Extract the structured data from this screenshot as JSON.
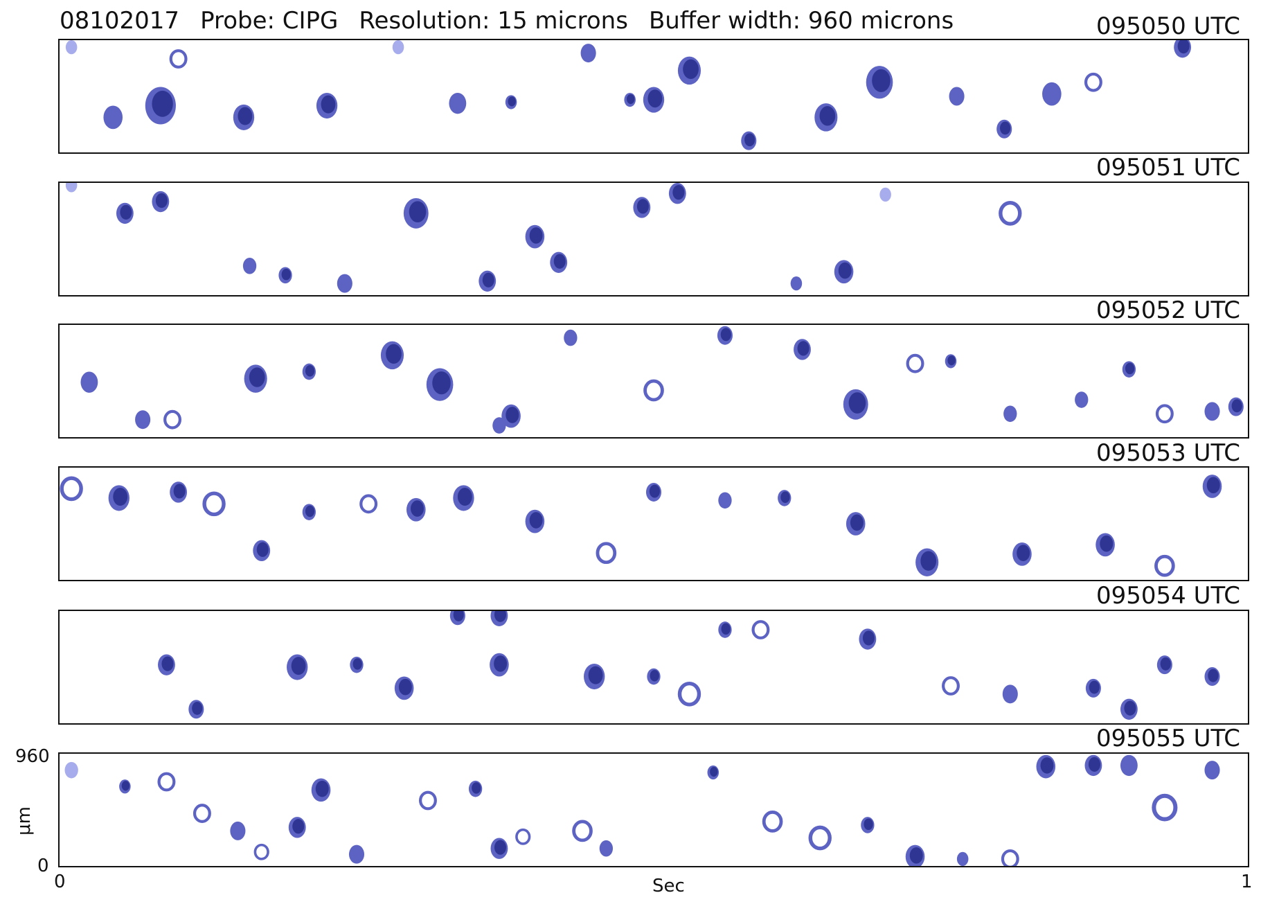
{
  "header": {
    "date": "08102017",
    "probe": "Probe: CIPG",
    "resolution": "Resolution: 15 microns",
    "buffer": "Buffer width: 960 microns"
  },
  "colors": {
    "dark": "#2f3593",
    "mid": "#5d63c2",
    "light": "#a7acec"
  },
  "chart_data": {
    "type": "image_strips",
    "title": "",
    "xlabel": "Sec",
    "ylabel": "μm",
    "x_ticks": [
      "0",
      "1"
    ],
    "y_ticks": [
      "960",
      "0"
    ],
    "xlim": [
      0,
      1
    ],
    "ylim": [
      0,
      960
    ],
    "strips": [
      {
        "label": "095050 UTC",
        "particles": [
          {
            "x": 0.01,
            "y": 900,
            "r": 60,
            "t": "light"
          },
          {
            "x": 0.045,
            "y": 300,
            "r": 100,
            "t": "mid"
          },
          {
            "x": 0.085,
            "y": 400,
            "r": 160,
            "t": "dark"
          },
          {
            "x": 0.1,
            "y": 800,
            "r": 70,
            "t": "ring"
          },
          {
            "x": 0.155,
            "y": 300,
            "r": 110,
            "t": "dark"
          },
          {
            "x": 0.225,
            "y": 400,
            "r": 110,
            "t": "dark"
          },
          {
            "x": 0.285,
            "y": 900,
            "r": 60,
            "t": "light"
          },
          {
            "x": 0.335,
            "y": 420,
            "r": 90,
            "t": "mid"
          },
          {
            "x": 0.38,
            "y": 430,
            "r": 60,
            "t": "dark"
          },
          {
            "x": 0.445,
            "y": 850,
            "r": 80,
            "t": "mid"
          },
          {
            "x": 0.48,
            "y": 450,
            "r": 60,
            "t": "dark"
          },
          {
            "x": 0.5,
            "y": 450,
            "r": 110,
            "t": "dark"
          },
          {
            "x": 0.53,
            "y": 700,
            "r": 120,
            "t": "dark"
          },
          {
            "x": 0.58,
            "y": 100,
            "r": 80,
            "t": "dark"
          },
          {
            "x": 0.645,
            "y": 300,
            "r": 120,
            "t": "dark"
          },
          {
            "x": 0.69,
            "y": 600,
            "r": 140,
            "t": "dark"
          },
          {
            "x": 0.755,
            "y": 480,
            "r": 80,
            "t": "mid"
          },
          {
            "x": 0.795,
            "y": 200,
            "r": 80,
            "t": "dark"
          },
          {
            "x": 0.835,
            "y": 500,
            "r": 100,
            "t": "mid"
          },
          {
            "x": 0.87,
            "y": 600,
            "r": 70,
            "t": "ring"
          },
          {
            "x": 0.945,
            "y": 900,
            "r": 90,
            "t": "dark"
          }
        ]
      },
      {
        "label": "095051 UTC",
        "particles": [
          {
            "x": 0.01,
            "y": 940,
            "r": 60,
            "t": "light"
          },
          {
            "x": 0.055,
            "y": 700,
            "r": 90,
            "t": "dark"
          },
          {
            "x": 0.085,
            "y": 800,
            "r": 90,
            "t": "dark"
          },
          {
            "x": 0.16,
            "y": 250,
            "r": 70,
            "t": "mid"
          },
          {
            "x": 0.19,
            "y": 170,
            "r": 70,
            "t": "dark"
          },
          {
            "x": 0.24,
            "y": 100,
            "r": 80,
            "t": "mid"
          },
          {
            "x": 0.3,
            "y": 700,
            "r": 130,
            "t": "dark"
          },
          {
            "x": 0.36,
            "y": 120,
            "r": 90,
            "t": "dark"
          },
          {
            "x": 0.4,
            "y": 500,
            "r": 100,
            "t": "dark"
          },
          {
            "x": 0.42,
            "y": 280,
            "r": 90,
            "t": "dark"
          },
          {
            "x": 0.49,
            "y": 750,
            "r": 90,
            "t": "dark"
          },
          {
            "x": 0.52,
            "y": 870,
            "r": 90,
            "t": "dark"
          },
          {
            "x": 0.62,
            "y": 100,
            "r": 60,
            "t": "mid"
          },
          {
            "x": 0.66,
            "y": 200,
            "r": 100,
            "t": "dark"
          },
          {
            "x": 0.695,
            "y": 860,
            "r": 60,
            "t": "light"
          },
          {
            "x": 0.8,
            "y": 700,
            "r": 90,
            "t": "ring"
          }
        ]
      },
      {
        "label": "095052 UTC",
        "particles": [
          {
            "x": 0.025,
            "y": 470,
            "r": 90,
            "t": "mid"
          },
          {
            "x": 0.07,
            "y": 150,
            "r": 80,
            "t": "mid"
          },
          {
            "x": 0.095,
            "y": 150,
            "r": 70,
            "t": "ring"
          },
          {
            "x": 0.165,
            "y": 500,
            "r": 120,
            "t": "dark"
          },
          {
            "x": 0.21,
            "y": 560,
            "r": 70,
            "t": "dark"
          },
          {
            "x": 0.28,
            "y": 700,
            "r": 120,
            "t": "dark"
          },
          {
            "x": 0.32,
            "y": 450,
            "r": 140,
            "t": "dark"
          },
          {
            "x": 0.37,
            "y": 100,
            "r": 70,
            "t": "mid"
          },
          {
            "x": 0.38,
            "y": 180,
            "r": 100,
            "t": "dark"
          },
          {
            "x": 0.43,
            "y": 850,
            "r": 70,
            "t": "mid"
          },
          {
            "x": 0.5,
            "y": 400,
            "r": 80,
            "t": "ring"
          },
          {
            "x": 0.56,
            "y": 870,
            "r": 80,
            "t": "dark"
          },
          {
            "x": 0.625,
            "y": 750,
            "r": 90,
            "t": "dark"
          },
          {
            "x": 0.67,
            "y": 280,
            "r": 130,
            "t": "dark"
          },
          {
            "x": 0.72,
            "y": 630,
            "r": 70,
            "t": "ring"
          },
          {
            "x": 0.75,
            "y": 650,
            "r": 60,
            "t": "dark"
          },
          {
            "x": 0.8,
            "y": 200,
            "r": 70,
            "t": "mid"
          },
          {
            "x": 0.86,
            "y": 320,
            "r": 70,
            "t": "mid"
          },
          {
            "x": 0.9,
            "y": 580,
            "r": 70,
            "t": "dark"
          },
          {
            "x": 0.93,
            "y": 200,
            "r": 70,
            "t": "ring"
          },
          {
            "x": 0.97,
            "y": 220,
            "r": 80,
            "t": "mid"
          },
          {
            "x": 0.99,
            "y": 260,
            "r": 80,
            "t": "dark"
          }
        ]
      },
      {
        "label": "095053 UTC",
        "particles": [
          {
            "x": 0.01,
            "y": 780,
            "r": 90,
            "t": "ring"
          },
          {
            "x": 0.05,
            "y": 700,
            "r": 110,
            "t": "dark"
          },
          {
            "x": 0.1,
            "y": 750,
            "r": 90,
            "t": "dark"
          },
          {
            "x": 0.13,
            "y": 650,
            "r": 90,
            "t": "ring"
          },
          {
            "x": 0.17,
            "y": 250,
            "r": 90,
            "t": "dark"
          },
          {
            "x": 0.21,
            "y": 580,
            "r": 70,
            "t": "dark"
          },
          {
            "x": 0.26,
            "y": 650,
            "r": 70,
            "t": "ring"
          },
          {
            "x": 0.3,
            "y": 600,
            "r": 100,
            "t": "dark"
          },
          {
            "x": 0.34,
            "y": 700,
            "r": 110,
            "t": "dark"
          },
          {
            "x": 0.4,
            "y": 500,
            "r": 100,
            "t": "dark"
          },
          {
            "x": 0.46,
            "y": 230,
            "r": 80,
            "t": "ring"
          },
          {
            "x": 0.5,
            "y": 750,
            "r": 80,
            "t": "dark"
          },
          {
            "x": 0.56,
            "y": 680,
            "r": 70,
            "t": "mid"
          },
          {
            "x": 0.61,
            "y": 700,
            "r": 70,
            "t": "dark"
          },
          {
            "x": 0.67,
            "y": 480,
            "r": 100,
            "t": "dark"
          },
          {
            "x": 0.73,
            "y": 150,
            "r": 120,
            "t": "dark"
          },
          {
            "x": 0.81,
            "y": 220,
            "r": 100,
            "t": "dark"
          },
          {
            "x": 0.88,
            "y": 300,
            "r": 100,
            "t": "dark"
          },
          {
            "x": 0.93,
            "y": 120,
            "r": 80,
            "t": "ring"
          },
          {
            "x": 0.97,
            "y": 800,
            "r": 100,
            "t": "dark"
          }
        ]
      },
      {
        "label": "095054 UTC",
        "particles": [
          {
            "x": 0.09,
            "y": 500,
            "r": 90,
            "t": "dark"
          },
          {
            "x": 0.115,
            "y": 120,
            "r": 80,
            "t": "dark"
          },
          {
            "x": 0.2,
            "y": 480,
            "r": 110,
            "t": "dark"
          },
          {
            "x": 0.25,
            "y": 500,
            "r": 70,
            "t": "dark"
          },
          {
            "x": 0.29,
            "y": 300,
            "r": 100,
            "t": "dark"
          },
          {
            "x": 0.335,
            "y": 920,
            "r": 80,
            "t": "dark"
          },
          {
            "x": 0.37,
            "y": 920,
            "r": 90,
            "t": "dark"
          },
          {
            "x": 0.37,
            "y": 500,
            "r": 100,
            "t": "dark"
          },
          {
            "x": 0.45,
            "y": 400,
            "r": 110,
            "t": "dark"
          },
          {
            "x": 0.5,
            "y": 400,
            "r": 70,
            "t": "dark"
          },
          {
            "x": 0.53,
            "y": 250,
            "r": 90,
            "t": "ring"
          },
          {
            "x": 0.56,
            "y": 800,
            "r": 70,
            "t": "dark"
          },
          {
            "x": 0.59,
            "y": 800,
            "r": 70,
            "t": "ring"
          },
          {
            "x": 0.68,
            "y": 720,
            "r": 90,
            "t": "dark"
          },
          {
            "x": 0.75,
            "y": 320,
            "r": 70,
            "t": "ring"
          },
          {
            "x": 0.8,
            "y": 250,
            "r": 80,
            "t": "mid"
          },
          {
            "x": 0.87,
            "y": 300,
            "r": 80,
            "t": "dark"
          },
          {
            "x": 0.9,
            "y": 120,
            "r": 90,
            "t": "dark"
          },
          {
            "x": 0.93,
            "y": 500,
            "r": 80,
            "t": "dark"
          },
          {
            "x": 0.97,
            "y": 400,
            "r": 80,
            "t": "dark"
          }
        ]
      },
      {
        "label": "095055 UTC",
        "particles": [
          {
            "x": 0.01,
            "y": 820,
            "r": 70,
            "t": "light"
          },
          {
            "x": 0.055,
            "y": 680,
            "r": 60,
            "t": "dark"
          },
          {
            "x": 0.09,
            "y": 720,
            "r": 70,
            "t": "ring"
          },
          {
            "x": 0.12,
            "y": 450,
            "r": 70,
            "t": "ring"
          },
          {
            "x": 0.15,
            "y": 300,
            "r": 80,
            "t": "mid"
          },
          {
            "x": 0.17,
            "y": 120,
            "r": 60,
            "t": "ring"
          },
          {
            "x": 0.2,
            "y": 330,
            "r": 90,
            "t": "dark"
          },
          {
            "x": 0.22,
            "y": 650,
            "r": 100,
            "t": "dark"
          },
          {
            "x": 0.25,
            "y": 100,
            "r": 80,
            "t": "mid"
          },
          {
            "x": 0.31,
            "y": 560,
            "r": 70,
            "t": "ring"
          },
          {
            "x": 0.35,
            "y": 660,
            "r": 70,
            "t": "dark"
          },
          {
            "x": 0.37,
            "y": 150,
            "r": 90,
            "t": "dark"
          },
          {
            "x": 0.39,
            "y": 250,
            "r": 60,
            "t": "ring"
          },
          {
            "x": 0.44,
            "y": 300,
            "r": 80,
            "t": "ring"
          },
          {
            "x": 0.46,
            "y": 150,
            "r": 70,
            "t": "mid"
          },
          {
            "x": 0.55,
            "y": 800,
            "r": 60,
            "t": "dark"
          },
          {
            "x": 0.6,
            "y": 380,
            "r": 80,
            "t": "ring"
          },
          {
            "x": 0.64,
            "y": 240,
            "r": 90,
            "t": "ring"
          },
          {
            "x": 0.68,
            "y": 350,
            "r": 70,
            "t": "dark"
          },
          {
            "x": 0.72,
            "y": 80,
            "r": 100,
            "t": "dark"
          },
          {
            "x": 0.76,
            "y": 60,
            "r": 60,
            "t": "mid"
          },
          {
            "x": 0.8,
            "y": 60,
            "r": 70,
            "t": "ring"
          },
          {
            "x": 0.83,
            "y": 850,
            "r": 100,
            "t": "dark"
          },
          {
            "x": 0.87,
            "y": 860,
            "r": 90,
            "t": "dark"
          },
          {
            "x": 0.9,
            "y": 860,
            "r": 90,
            "t": "mid"
          },
          {
            "x": 0.93,
            "y": 500,
            "r": 100,
            "t": "ring"
          },
          {
            "x": 0.97,
            "y": 820,
            "r": 80,
            "t": "mid"
          }
        ]
      }
    ]
  }
}
